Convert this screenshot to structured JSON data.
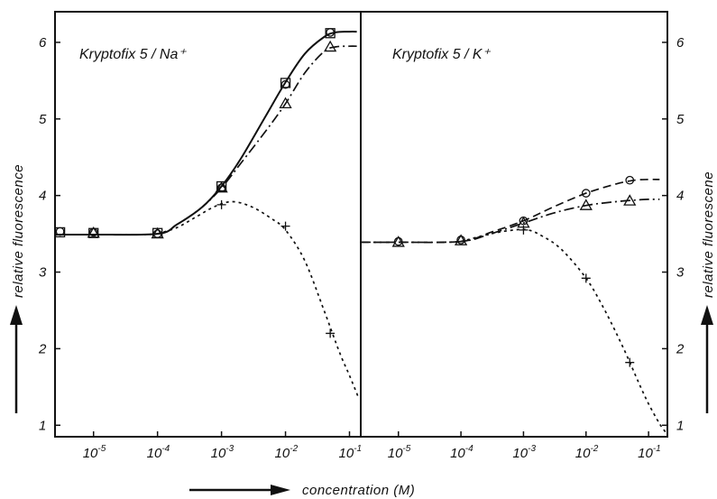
{
  "chart_data": [
    {
      "type": "line",
      "title": "Kryptofix 5 / Na⁺",
      "xscale": "log",
      "xlim": [
        2.5e-06,
        0.15
      ],
      "ylim": [
        0.85,
        6.4
      ],
      "x_ticks": [
        {
          "value": 1e-05,
          "mantissa": "10",
          "exp": "-5"
        },
        {
          "value": 0.0001,
          "mantissa": "10",
          "exp": "-4"
        },
        {
          "value": 0.001,
          "mantissa": "10",
          "exp": "-3"
        },
        {
          "value": 0.01,
          "mantissa": "10",
          "exp": "-2"
        },
        {
          "value": 0.1,
          "mantissa": "10",
          "exp": "-1"
        }
      ],
      "y_ticks": [
        1,
        2,
        3,
        4,
        5,
        6
      ],
      "y_side": "left",
      "ylabel": "relative fluorescence",
      "series": [
        {
          "marker": "square",
          "line": "solid",
          "x": [
            3e-06,
            1e-05,
            0.0001,
            0.001,
            0.01,
            0.05
          ],
          "y": [
            3.52,
            3.51,
            3.51,
            4.12,
            5.47,
            6.12
          ],
          "curve_x": [
            2.5e-06,
            1e-05,
            0.0001,
            0.0002,
            0.0005,
            0.001,
            0.002,
            0.005,
            0.01,
            0.02,
            0.04,
            0.06,
            0.1,
            0.13
          ],
          "curve_y": [
            3.49,
            3.49,
            3.5,
            3.62,
            3.85,
            4.12,
            4.48,
            5.05,
            5.48,
            5.85,
            6.07,
            6.13,
            6.14,
            6.14
          ]
        },
        {
          "marker": "circle",
          "line": "solid",
          "x": [
            3e-06,
            1e-05,
            0.0001,
            0.001,
            0.01,
            0.05
          ],
          "y": [
            3.53,
            3.52,
            3.5,
            4.1,
            5.45,
            6.13
          ]
        },
        {
          "marker": "triangle",
          "line": "dashdot",
          "x": [
            1e-05,
            0.0001,
            0.001,
            0.01,
            0.05
          ],
          "y": [
            3.51,
            3.5,
            4.1,
            5.2,
            5.94
          ],
          "curve_x": [
            2.5e-06,
            1e-05,
            0.0001,
            0.0002,
            0.0005,
            0.001,
            0.002,
            0.005,
            0.01,
            0.02,
            0.04,
            0.06,
            0.1,
            0.13
          ],
          "curve_y": [
            3.49,
            3.49,
            3.5,
            3.62,
            3.85,
            4.1,
            4.42,
            4.85,
            5.2,
            5.6,
            5.88,
            5.94,
            5.95,
            5.95
          ]
        },
        {
          "marker": "plus",
          "line": "dotted",
          "x": [
            0.001,
            0.01,
            0.05
          ],
          "y": [
            3.88,
            3.6,
            2.2
          ],
          "curve_x": [
            0.0001,
            0.0002,
            0.0004,
            0.0008,
            0.0015,
            0.003,
            0.006,
            0.01,
            0.02,
            0.04,
            0.07,
            0.1,
            0.14
          ],
          "curve_y": [
            3.5,
            3.58,
            3.72,
            3.86,
            3.92,
            3.85,
            3.7,
            3.55,
            3.15,
            2.5,
            1.95,
            1.65,
            1.35
          ]
        }
      ]
    },
    {
      "type": "line",
      "title": "Kryptofix 5 / K⁺",
      "xscale": "log",
      "xlim": [
        2.5e-06,
        0.2
      ],
      "ylim": [
        0.85,
        6.4
      ],
      "x_ticks": [
        {
          "value": 1e-05,
          "mantissa": "10",
          "exp": "-5"
        },
        {
          "value": 0.0001,
          "mantissa": "10",
          "exp": "-4"
        },
        {
          "value": 0.001,
          "mantissa": "10",
          "exp": "-3"
        },
        {
          "value": 0.01,
          "mantissa": "10",
          "exp": "-2"
        },
        {
          "value": 0.1,
          "mantissa": "10",
          "exp": "-1"
        }
      ],
      "y_ticks": [
        1,
        2,
        3,
        4,
        5,
        6
      ],
      "y_side": "right",
      "ylabel": "relative fluoresce­ne",
      "series": [
        {
          "marker": "circle",
          "line": "dashed",
          "x": [
            1e-05,
            0.0001,
            0.001,
            0.01,
            0.05
          ],
          "y": [
            3.4,
            3.42,
            3.67,
            4.03,
            4.2
          ],
          "curve_x": [
            2.5e-06,
            1e-05,
            0.0001,
            0.0003,
            0.001,
            0.003,
            0.01,
            0.03,
            0.06,
            0.1,
            0.15
          ],
          "curve_y": [
            3.39,
            3.39,
            3.4,
            3.52,
            3.67,
            3.85,
            4.03,
            4.15,
            4.2,
            4.21,
            4.21
          ]
        },
        {
          "marker": "triangle",
          "line": "dashdot",
          "x": [
            1e-05,
            0.0001,
            0.001,
            0.01,
            0.05
          ],
          "y": [
            3.39,
            3.41,
            3.64,
            3.87,
            3.93
          ],
          "curve_x": [
            2.5e-06,
            1e-05,
            0.0001,
            0.0003,
            0.001,
            0.003,
            0.01,
            0.03,
            0.06,
            0.1,
            0.15
          ],
          "curve_y": [
            3.39,
            3.39,
            3.4,
            3.5,
            3.64,
            3.77,
            3.87,
            3.92,
            3.94,
            3.95,
            3.95
          ]
        },
        {
          "marker": "plus",
          "line": "dotted",
          "x": [
            0.001,
            0.01,
            0.05
          ],
          "y": [
            3.55,
            2.92,
            1.82
          ],
          "curve_x": [
            0.0001,
            0.0003,
            0.0007,
            0.0012,
            0.002,
            0.004,
            0.01,
            0.02,
            0.04,
            0.07,
            0.1,
            0.15,
            0.2
          ],
          "curve_y": [
            3.4,
            3.5,
            3.55,
            3.55,
            3.47,
            3.3,
            2.92,
            2.5,
            2.0,
            1.55,
            1.28,
            1.02,
            0.88
          ]
        }
      ]
    }
  ],
  "xlabel": "concentration (M)"
}
